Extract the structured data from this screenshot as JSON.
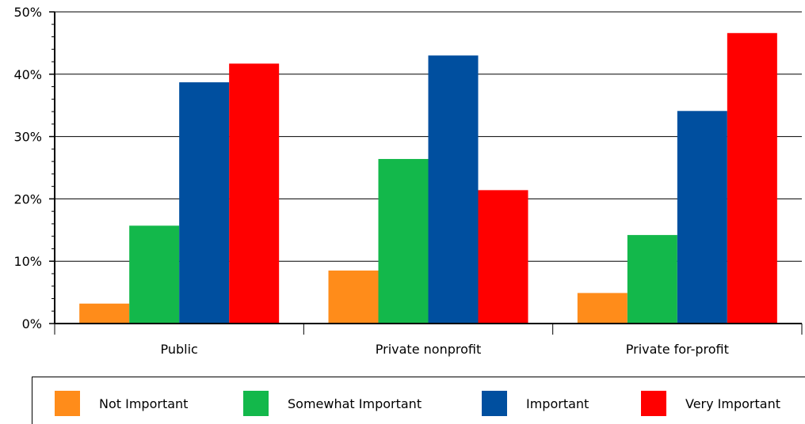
{
  "chart_data": {
    "type": "bar",
    "categories": [
      "Public",
      "Private nonprofit",
      "Private for-profit"
    ],
    "series": [
      {
        "name": "Not Important",
        "color": "#ff8c1a",
        "values": [
          3.2,
          8.5,
          4.9
        ]
      },
      {
        "name": "Somewhat Important",
        "color": "#13b84b",
        "values": [
          15.7,
          26.4,
          14.2
        ]
      },
      {
        "name": "Important",
        "color": "#004f9f",
        "values": [
          38.7,
          43.0,
          34.1
        ]
      },
      {
        "name": "Very Important",
        "color": "#ff0000",
        "values": [
          41.7,
          21.4,
          46.6
        ]
      }
    ],
    "ylim": [
      0,
      50
    ],
    "yticks": [
      "0%",
      "10%",
      "20%",
      "30%",
      "40%",
      "50%"
    ],
    "ytick_values": [
      0,
      10,
      20,
      30,
      40,
      50
    ],
    "grid": true,
    "title": "",
    "xlabel": "",
    "ylabel": "",
    "legend_position": "bottom"
  }
}
